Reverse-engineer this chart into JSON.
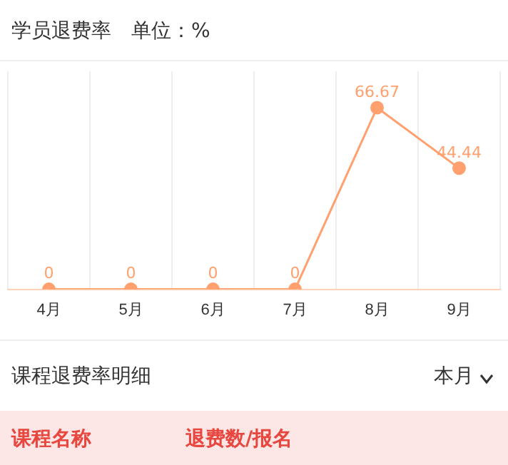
{
  "chart_data": {
    "type": "line",
    "title": "学员退费率",
    "subtitle": "单位：%",
    "categories": [
      "4月",
      "5月",
      "6月",
      "7月",
      "8月",
      "9月"
    ],
    "series": [
      {
        "color": "#ffa06e",
        "values": [
          0,
          0,
          0,
          0,
          66.67,
          44.44
        ]
      }
    ],
    "tick_labels": "x",
    "data_labels": true,
    "grid": "x",
    "marker": "circle",
    "line_style": "solid",
    "legend": false,
    "annotations": [
      "课程退费率明细",
      "本月",
      "课程名称",
      "退费数/报名"
    ]
  }
}
